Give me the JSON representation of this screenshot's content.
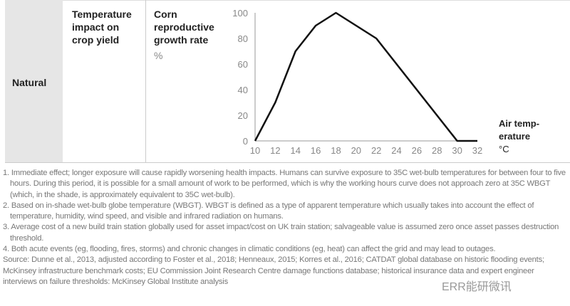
{
  "row_label": "Natural",
  "metric": "Temperature impact on crop yield",
  "measure": "Corn reproductive growth rate",
  "unit": "%",
  "chart_data": {
    "type": "line",
    "title": "Corn reproductive growth rate",
    "ylabel": "%",
    "xlabel": [
      "Air temp-",
      "erature",
      "°C"
    ],
    "x": [
      10,
      12,
      14,
      16,
      18,
      22,
      30,
      32
    ],
    "series": [
      {
        "name": "Corn reproductive growth rate",
        "values": [
          0,
          30,
          70,
          90,
          100,
          80,
          0,
          0
        ]
      }
    ],
    "xticks": [
      10,
      12,
      14,
      16,
      18,
      20,
      22,
      24,
      26,
      28,
      30,
      32
    ],
    "yticks": [
      0,
      20,
      40,
      60,
      80,
      100
    ],
    "xlim": [
      10,
      32
    ],
    "ylim": [
      0,
      100
    ],
    "grid": false
  },
  "notes": [
    "1. Immediate effect; longer exposure will cause rapidly worsening health impacts. Humans can survive exposure to 35C wet-bulb temperatures for between four to five hours. During this period, it is possible for a small amount of work to be performed, which is why the working hours curve does not approach zero at 35C WBGT (which, in the shade, is approximately equivalent to 35C wet-bulb).",
    "2. Based on in-shade wet-bulb globe temperature (WBGT). WBGT is defined as a type of apparent temperature which usually takes into account the effect of temperature, humidity, wind speed, and visible and infrared radiation on humans.",
    "3. Average cost of a new build train station globally used for asset impact/cost on UK train station; salvageable value is assumed zero once asset passes destruction threshold.",
    "4. Both acute events (eg, flooding, fires, storms) and chronic changes in climatic conditions (eg, heat) can affect the grid and may lead to outages."
  ],
  "source": "Source: Dunne et al., 2013, adjusted according to Foster et al., 2018; Henneaux, 2015; Korres et al., 2016; CATDAT global database on historic flooding events; McKinsey infrastructure benchmark costs; EU Commission Joint Research Centre damage functions database; historical insurance data and expert engineer interviews on failure thresholds: McKinsey Global Institute analysis",
  "watermark": "ERR能研微讯"
}
